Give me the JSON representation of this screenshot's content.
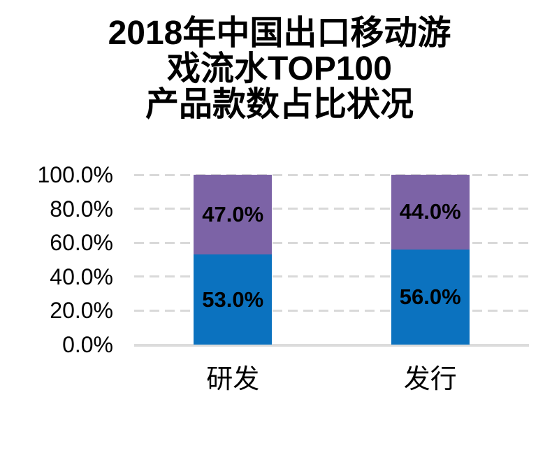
{
  "title_lines": [
    "2018年中国出口移动游",
    "戏流水TOP100",
    "产品款数占比状况"
  ],
  "chart_data": {
    "type": "bar",
    "stacked": true,
    "stack_order": "bottom-to-top",
    "title": "2018年中国出口移动游戏流水TOP100产品款数占比状况",
    "categories": [
      "研发",
      "发行"
    ],
    "series": [
      {
        "name": "segment-bottom",
        "color": "#0b72bf",
        "values": [
          53.0,
          56.0
        ],
        "labels": [
          "53.0%",
          "56.0%"
        ]
      },
      {
        "name": "segment-top",
        "color": "#7c63a6",
        "values": [
          47.0,
          44.0
        ],
        "labels": [
          "47.0%",
          "44.0%"
        ]
      }
    ],
    "y_axis": {
      "ticks": [
        "100.0%",
        "80.0%",
        "60.0%",
        "40.0%",
        "20.0%",
        "0.0%"
      ],
      "min": 0,
      "max": 100,
      "step": 20,
      "unit": "percent"
    },
    "grid": "on",
    "gridline_style": "dashed",
    "gridline_color": "#d9d9d9",
    "axis_line_color": "#dcdcdc",
    "legend": "none",
    "background": "#ffffff",
    "label_color": "#000000"
  }
}
